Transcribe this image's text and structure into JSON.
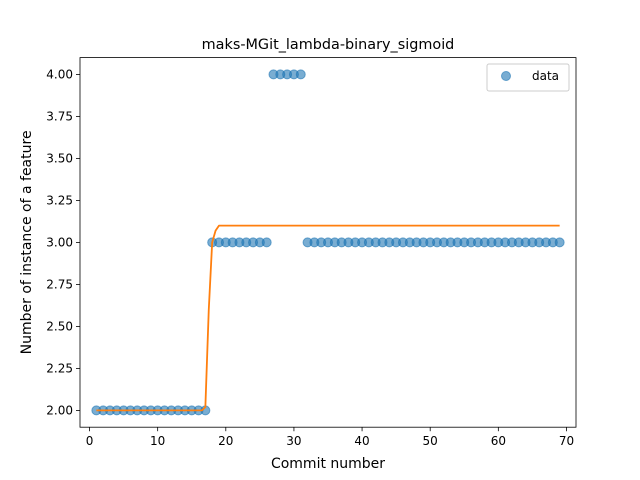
{
  "chart_data": {
    "type": "scatter",
    "title": "maks-MGit_lambda-binary_sigmoid",
    "xlabel": "Commit number",
    "ylabel": "Number of instance of a feature",
    "xlim": [
      -1.4,
      71.4
    ],
    "ylim": [
      1.9,
      4.1
    ],
    "xticks": [
      0,
      10,
      20,
      30,
      40,
      50,
      60,
      70
    ],
    "yticks": [
      2.0,
      2.25,
      2.5,
      2.75,
      3.0,
      3.25,
      3.5,
      3.75,
      4.0
    ],
    "ytick_labels": [
      "2.00",
      "2.25",
      "2.50",
      "2.75",
      "3.00",
      "3.25",
      "3.50",
      "3.75",
      "4.00"
    ],
    "legend_position": "top-right",
    "grid": false,
    "series": [
      {
        "name": "data",
        "kind": "scatter",
        "color": "#1f77b4",
        "alpha": 0.6,
        "x": [
          1,
          2,
          3,
          4,
          5,
          6,
          7,
          8,
          9,
          10,
          11,
          12,
          13,
          14,
          15,
          16,
          17,
          18,
          19,
          20,
          21,
          22,
          23,
          24,
          25,
          26,
          27,
          28,
          29,
          30,
          31,
          32,
          33,
          34,
          35,
          36,
          37,
          38,
          39,
          40,
          41,
          42,
          43,
          44,
          45,
          46,
          47,
          48,
          49,
          50,
          51,
          52,
          53,
          54,
          55,
          56,
          57,
          58,
          59,
          60,
          61,
          62,
          63,
          64,
          65,
          66,
          67,
          68,
          69
        ],
        "y": [
          2,
          2,
          2,
          2,
          2,
          2,
          2,
          2,
          2,
          2,
          2,
          2,
          2,
          2,
          2,
          2,
          2,
          3,
          3,
          3,
          3,
          3,
          3,
          3,
          3,
          3,
          4,
          4,
          4,
          4,
          4,
          3,
          3,
          3,
          3,
          3,
          3,
          3,
          3,
          3,
          3,
          3,
          3,
          3,
          3,
          3,
          3,
          3,
          3,
          3,
          3,
          3,
          3,
          3,
          3,
          3,
          3,
          3,
          3,
          3,
          3,
          3,
          3,
          3,
          3,
          3,
          3,
          3,
          3
        ]
      },
      {
        "kind": "line",
        "color": "#ff7f0e",
        "x": [
          1,
          16.5,
          17,
          17.5,
          18,
          18.5,
          19,
          69
        ],
        "y": [
          2.0,
          2.0,
          2.02,
          2.6,
          3.0,
          3.07,
          3.1,
          3.1
        ]
      }
    ]
  }
}
